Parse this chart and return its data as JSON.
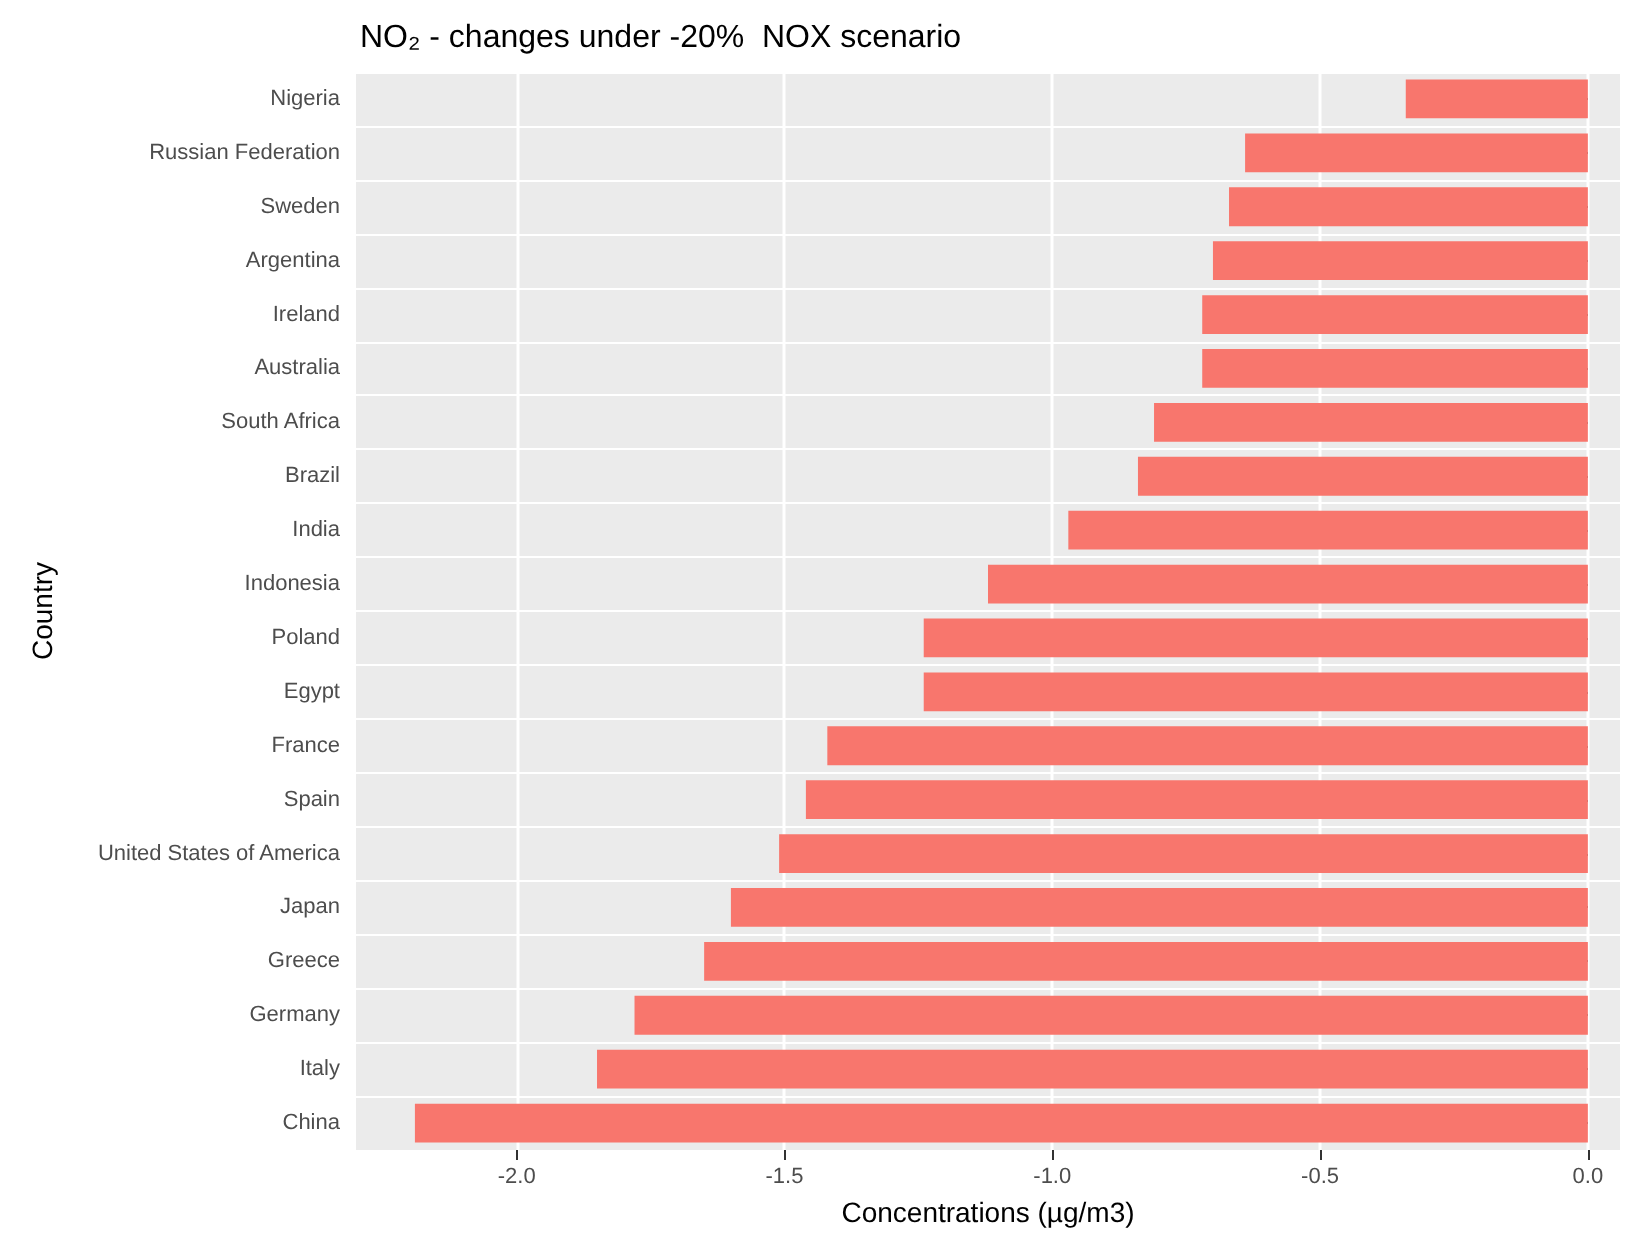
{
  "chart_data": {
    "type": "bar",
    "orientation": "horizontal",
    "title": "NO₂ - changes under -20%  NOX scenario",
    "xlabel": "Concentrations (µg/m3)",
    "ylabel": "Country",
    "categories": [
      "Nigeria",
      "Russian Federation",
      "Sweden",
      "Argentina",
      "Ireland",
      "Australia",
      "South Africa",
      "Brazil",
      "India",
      "Indonesia",
      "Poland",
      "Egypt",
      "France",
      "Spain",
      "United States of America",
      "Japan",
      "Greece",
      "Germany",
      "Italy",
      "China"
    ],
    "values": [
      -0.34,
      -0.64,
      -0.67,
      -0.7,
      -0.72,
      -0.72,
      -0.81,
      -0.84,
      -0.97,
      -1.12,
      -1.24,
      -1.24,
      -1.42,
      -1.46,
      -1.51,
      -1.6,
      -1.65,
      -1.78,
      -1.85,
      -2.19
    ],
    "color": "#f8766d",
    "xlim": [
      -2.3,
      0.06
    ],
    "xticks": [
      {
        "value": -2,
        "label": "-2.0"
      },
      {
        "value": -1.5,
        "label": "-1.5"
      },
      {
        "value": -1,
        "label": "-1.0"
      },
      {
        "value": -0.5,
        "label": "-0.5"
      },
      {
        "value": 0,
        "label": "0.0"
      }
    ],
    "grid": true
  }
}
